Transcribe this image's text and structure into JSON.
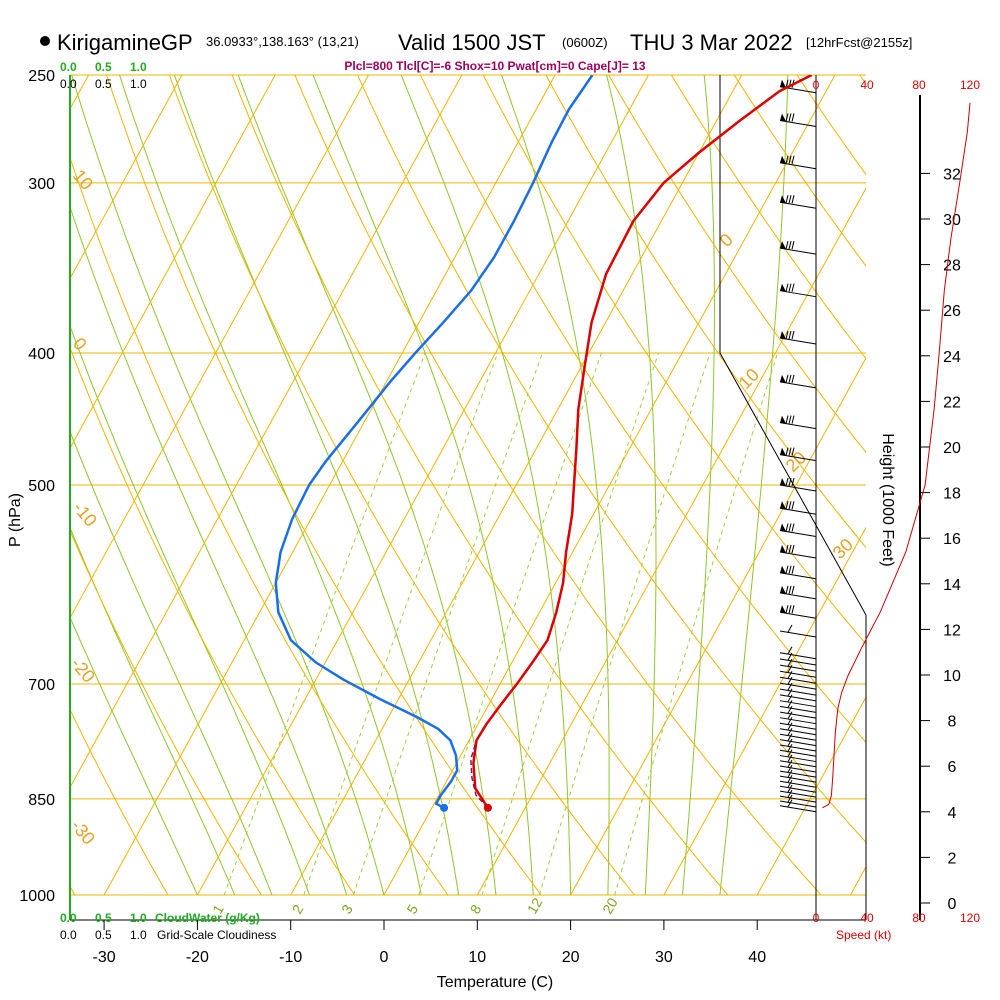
{
  "header": {
    "station": "KirigamineGP",
    "coords": "36.0933°,138.163° (13,21)",
    "valid": "Valid 1500 JST",
    "zulu": "(0600Z)",
    "date": "THU 3 Mar 2022",
    "forecast": "[12hrFcst@2155z]"
  },
  "params_line": "Plcl=800 Tlcl[C]=-6 Shox=10 Pwat[cm]=0 Cape[J]= 13",
  "cloud_scale": {
    "top_green": [
      "0.0",
      "0.5",
      "1.0"
    ],
    "top_black": [
      "0.0",
      "0.5",
      "1.0"
    ],
    "bottom_green": [
      "0.0",
      "0.5",
      "1.0"
    ],
    "bottom_black": [
      "0.0",
      "0.5",
      "1.0"
    ],
    "cloudwater_label": "CloudWater (g/Kg)",
    "cloudiness_label": "Grid-Scale Cloudiness"
  },
  "speed_scale": {
    "ticks": [
      "0",
      "40",
      "80",
      "120"
    ],
    "label": "Speed (kt)"
  },
  "chart_data": {
    "type": "line",
    "title": "KirigamineGP Valid 1500 JST THU 3 Mar 2022",
    "xlabel": "Temperature (C)",
    "ylabel": "P (hPa)",
    "y2label": "Height (1000 Feet)",
    "xlim": [
      -34,
      46
    ],
    "ylim": [
      1000,
      250
    ],
    "xticks": [
      -30,
      -20,
      -10,
      0,
      10,
      20,
      30,
      40
    ],
    "pressure_ticks": [
      250,
      300,
      400,
      500,
      700,
      850,
      1000
    ],
    "height_ticks": [
      0,
      2,
      4,
      6,
      8,
      10,
      12,
      14,
      16,
      18,
      20,
      22,
      24,
      26,
      28,
      30,
      32
    ],
    "mixing_ratio_labels": [
      "1",
      "2",
      "3",
      "5",
      "8",
      "12",
      "20"
    ],
    "isotherm_labels": [
      "0",
      "10",
      "20",
      "30"
    ],
    "adiabat_labels": [
      "10",
      "0",
      "-10",
      "-20",
      "-30"
    ],
    "series": [
      {
        "name": "Temperature",
        "color": "#dd0000",
        "points": [
          [
            6.0,
            863
          ],
          [
            3.5,
            835
          ],
          [
            1.8,
            800
          ],
          [
            0.8,
            770
          ],
          [
            0.9,
            750
          ],
          [
            1.3,
            725
          ],
          [
            1.8,
            700
          ],
          [
            2.2,
            675
          ],
          [
            2.5,
            650
          ],
          [
            1.8,
            620
          ],
          [
            0.8,
            590
          ],
          [
            -0.7,
            560
          ],
          [
            -2.3,
            525
          ],
          [
            -3.8,
            500
          ],
          [
            -5.7,
            470
          ],
          [
            -7.8,
            440
          ],
          [
            -9.6,
            410
          ],
          [
            -11.5,
            380
          ],
          [
            -12.8,
            350
          ],
          [
            -13.0,
            320
          ],
          [
            -12.0,
            300
          ],
          [
            -10.0,
            285
          ],
          [
            -7.5,
            270
          ],
          [
            -5.0,
            257
          ],
          [
            -2.5,
            250
          ]
        ]
      },
      {
        "name": "Parcel",
        "color": "#7a1a5a",
        "points": [
          [
            6.0,
            863
          ],
          [
            4.0,
            845
          ],
          [
            2.5,
            820
          ],
          [
            1.3,
            795
          ],
          [
            0.8,
            770
          ]
        ]
      },
      {
        "name": "Dewpoint",
        "color": "#1a6ee8",
        "points": [
          [
            1.3,
            863
          ],
          [
            0.2,
            857
          ],
          [
            0.2,
            845
          ],
          [
            0.5,
            825
          ],
          [
            0.5,
            810
          ],
          [
            -0.5,
            790
          ],
          [
            -2.0,
            770
          ],
          [
            -4.0,
            755
          ],
          [
            -7.0,
            740
          ],
          [
            -12.0,
            718
          ],
          [
            -17.0,
            695
          ],
          [
            -21.0,
            675
          ],
          [
            -25.0,
            650
          ],
          [
            -28.0,
            620
          ],
          [
            -30.0,
            590
          ],
          [
            -31.3,
            560
          ],
          [
            -32.0,
            530
          ],
          [
            -32.2,
            500
          ],
          [
            -31.8,
            480
          ],
          [
            -30.7,
            450
          ],
          [
            -29.6,
            420
          ],
          [
            -28.6,
            400
          ],
          [
            -27.4,
            380
          ],
          [
            -26.3,
            360
          ],
          [
            -25.8,
            340
          ],
          [
            -25.8,
            320
          ],
          [
            -26.0,
            300
          ],
          [
            -26.4,
            280
          ],
          [
            -26.5,
            265
          ],
          [
            -26.0,
            250
          ]
        ]
      }
    ],
    "wind_speed_profile_kt": [
      [
        5,
        863
      ],
      [
        10,
        858
      ],
      [
        12,
        845
      ],
      [
        13,
        820
      ],
      [
        14,
        790
      ],
      [
        15,
        760
      ],
      [
        17,
        730
      ],
      [
        20,
        710
      ],
      [
        25,
        690
      ],
      [
        35,
        660
      ],
      [
        50,
        620
      ],
      [
        70,
        560
      ],
      [
        85,
        500
      ],
      [
        92,
        440
      ],
      [
        96,
        400
      ],
      [
        100,
        360
      ],
      [
        105,
        330
      ],
      [
        112,
        300
      ],
      [
        118,
        275
      ],
      [
        120,
        262
      ]
    ]
  }
}
